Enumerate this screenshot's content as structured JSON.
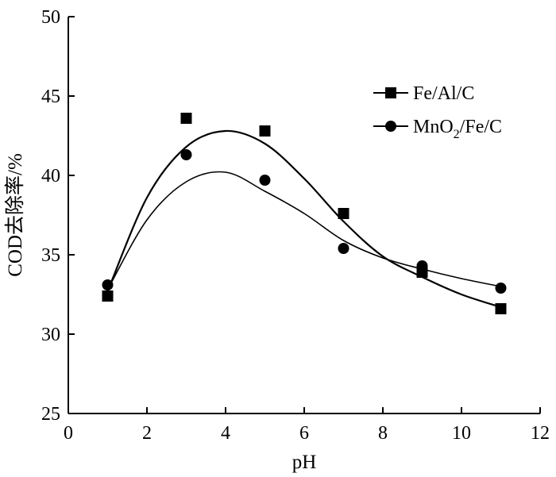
{
  "chart_data": {
    "type": "scatter",
    "xlabel": "pH",
    "ylabel": "COD去除率/%",
    "xlim": [
      0,
      12
    ],
    "ylim": [
      25,
      50
    ],
    "xticks": [
      0,
      2,
      4,
      6,
      8,
      10,
      12
    ],
    "yticks": [
      25,
      30,
      35,
      40,
      45,
      50
    ],
    "grid": false,
    "legend_position": "top-right",
    "series": [
      {
        "name": "Fe/Al/C",
        "marker": "square",
        "points": [
          [
            1,
            32.4
          ],
          [
            3,
            43.6
          ],
          [
            5,
            42.8
          ],
          [
            7,
            37.6
          ],
          [
            9,
            33.9
          ],
          [
            11,
            31.6
          ]
        ],
        "fit_curve": [
          [
            1,
            32.7
          ],
          [
            2,
            38.6
          ],
          [
            3,
            41.8
          ],
          [
            4,
            42.8
          ],
          [
            5,
            42.0
          ],
          [
            6,
            39.8
          ],
          [
            7,
            37.1
          ],
          [
            8,
            34.9
          ],
          [
            9,
            33.6
          ],
          [
            10,
            32.5
          ],
          [
            11,
            31.7
          ]
        ]
      },
      {
        "name": "MnO2/Fe/C",
        "name_parts": [
          "MnO",
          "2",
          "/Fe/C"
        ],
        "marker": "circle",
        "points": [
          [
            1,
            33.1
          ],
          [
            3,
            41.3
          ],
          [
            5,
            39.7
          ],
          [
            7,
            35.4
          ],
          [
            9,
            34.3
          ],
          [
            11,
            32.9
          ]
        ],
        "fit_curve": [
          [
            1,
            32.8
          ],
          [
            2,
            37.2
          ],
          [
            3,
            39.6
          ],
          [
            4,
            40.2
          ],
          [
            5,
            39.0
          ],
          [
            6,
            37.6
          ],
          [
            7,
            35.9
          ],
          [
            8,
            34.8
          ],
          [
            9,
            34.1
          ],
          [
            10,
            33.5
          ],
          [
            11,
            33.0
          ]
        ]
      }
    ]
  }
}
